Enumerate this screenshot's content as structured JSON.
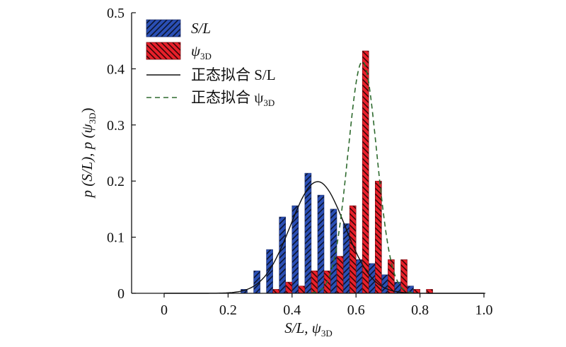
{
  "chart_data": {
    "type": "bar",
    "xlabel": "S/L, ψ3D",
    "xlabel_main": "S/L, ψ",
    "xlabel_sub": "3D",
    "ylabel": "p (S/L), p (ψ3D)",
    "ylabel_main": "p (S/L), p (ψ",
    "ylabel_sub": "3D",
    "ylabel_end": ")",
    "xlim": [
      -0.1,
      1.0
    ],
    "ylim": [
      0,
      0.5
    ],
    "xticks": [
      0,
      0.2,
      0.4,
      0.6,
      0.8,
      1.0
    ],
    "xtick_labels": [
      "0",
      "0.2",
      "0.4",
      "0.6",
      "0.8",
      "1.0"
    ],
    "yticks": [
      0,
      0.1,
      0.2,
      0.3,
      0.4,
      0.5
    ],
    "ytick_labels": [
      "0",
      "0.1",
      "0.2",
      "0.3",
      "0.4",
      "0.5"
    ],
    "bin_width": 0.04,
    "series": [
      {
        "name": "S/L",
        "color": "#2a4fb5",
        "hatch": "forward-slash",
        "x": [
          0.26,
          0.3,
          0.34,
          0.38,
          0.42,
          0.46,
          0.5,
          0.54,
          0.58,
          0.62,
          0.66,
          0.7,
          0.74,
          0.78
        ],
        "values": [
          0.007,
          0.04,
          0.078,
          0.136,
          0.156,
          0.214,
          0.175,
          0.15,
          0.124,
          0.06,
          0.053,
          0.033,
          0.02,
          0.013
        ]
      },
      {
        "name": "ψ3D",
        "color": "#e8202a",
        "hatch": "back-slash",
        "x": [
          0.34,
          0.38,
          0.42,
          0.46,
          0.5,
          0.54,
          0.58,
          0.62,
          0.66,
          0.7,
          0.74,
          0.78,
          0.82
        ],
        "values": [
          0.007,
          0.02,
          0.013,
          0.04,
          0.04,
          0.066,
          0.156,
          0.432,
          0.2,
          0.06,
          0.06,
          0.007,
          0.007
        ]
      }
    ],
    "fits": [
      {
        "name": "正态拟合 S/L",
        "style": "solid",
        "color": "#111111",
        "type": "normal",
        "mu": 0.48,
        "sigma": 0.085,
        "peak": 0.199,
        "range": [
          0.0,
          1.0
        ]
      },
      {
        "name": "正态拟合 ψ3D",
        "style": "dashed",
        "color": "#2e6a2e",
        "type": "normal",
        "mu": 0.62,
        "sigma": 0.045,
        "peak": 0.413,
        "range": [
          0.46,
          0.78
        ]
      }
    ],
    "legend": {
      "position": "top-left",
      "entries": [
        {
          "main": "S/L",
          "sub": "",
          "kind": "patch",
          "series": 0
        },
        {
          "main": "ψ",
          "sub": "3D",
          "kind": "patch",
          "series": 1
        },
        {
          "main": "正态拟合 S/L",
          "sub": "",
          "kind": "line",
          "fit": 0
        },
        {
          "main": "正态拟合 ψ",
          "sub": "3D",
          "kind": "line",
          "fit": 1
        }
      ]
    }
  }
}
